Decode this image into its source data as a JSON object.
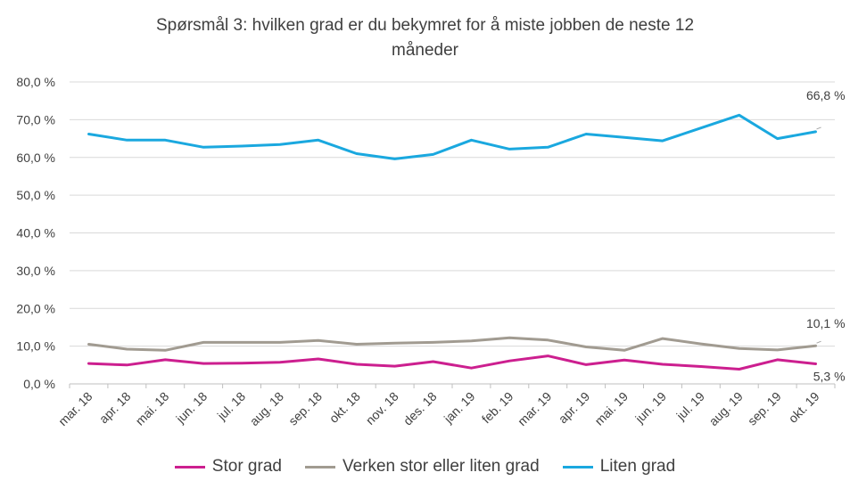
{
  "chart_data": {
    "type": "line",
    "title_line1": "Spørsmål 3: hvilken  grad er du bekymret for å miste jobben de neste 12",
    "title_line2": "måneder",
    "categories": [
      "mar. 18",
      "apr. 18",
      "mai. 18",
      "jun. 18",
      "jul. 18",
      "aug. 18",
      "sep. 18",
      "okt. 18",
      "nov. 18",
      "des. 18",
      "jan. 19",
      "feb. 19",
      "mar. 19",
      "apr. 19",
      "mai. 19",
      "jun. 19",
      "jul. 19",
      "aug. 19",
      "sep. 19",
      "okt. 19"
    ],
    "ylim": [
      0,
      80
    ],
    "yticks": [
      "0,0 %",
      "10,0 %",
      "20,0 %",
      "30,0 %",
      "40,0 %",
      "50,0 %",
      "60,0 %",
      "70,0 %",
      "80,0 %"
    ],
    "grid": true,
    "legend_position": "bottom",
    "series": [
      {
        "name": "Stor grad",
        "color": "#cc1f8f",
        "values": [
          5.4,
          5.0,
          6.4,
          5.4,
          5.5,
          5.7,
          6.6,
          5.2,
          4.7,
          5.9,
          4.2,
          6.1,
          7.4,
          5.1,
          6.3,
          5.2,
          4.6,
          3.9,
          6.4,
          5.3
        ]
      },
      {
        "name": "Verken stor eller liten grad",
        "color": "#a19b91",
        "values": [
          10.5,
          9.2,
          8.9,
          11.0,
          11.0,
          11.0,
          11.5,
          10.5,
          10.8,
          11.0,
          11.4,
          12.2,
          11.6,
          9.8,
          8.9,
          12.0,
          10.6,
          9.4,
          9.0,
          10.1
        ]
      },
      {
        "name": "Liten grad",
        "color": "#1aa8df",
        "values": [
          66.2,
          64.6,
          64.6,
          62.7,
          63.0,
          63.4,
          64.6,
          61.0,
          59.6,
          60.8,
          64.6,
          62.2,
          62.7,
          66.2,
          65.3,
          64.4,
          67.8,
          71.2,
          65.0,
          66.8
        ]
      }
    ],
    "annotations": [
      {
        "series": 2,
        "index": 19,
        "text": "66,8 %"
      },
      {
        "series": 1,
        "index": 19,
        "text": "10,1 %"
      },
      {
        "series": 0,
        "index": 19,
        "text": "5,3 %"
      }
    ]
  }
}
